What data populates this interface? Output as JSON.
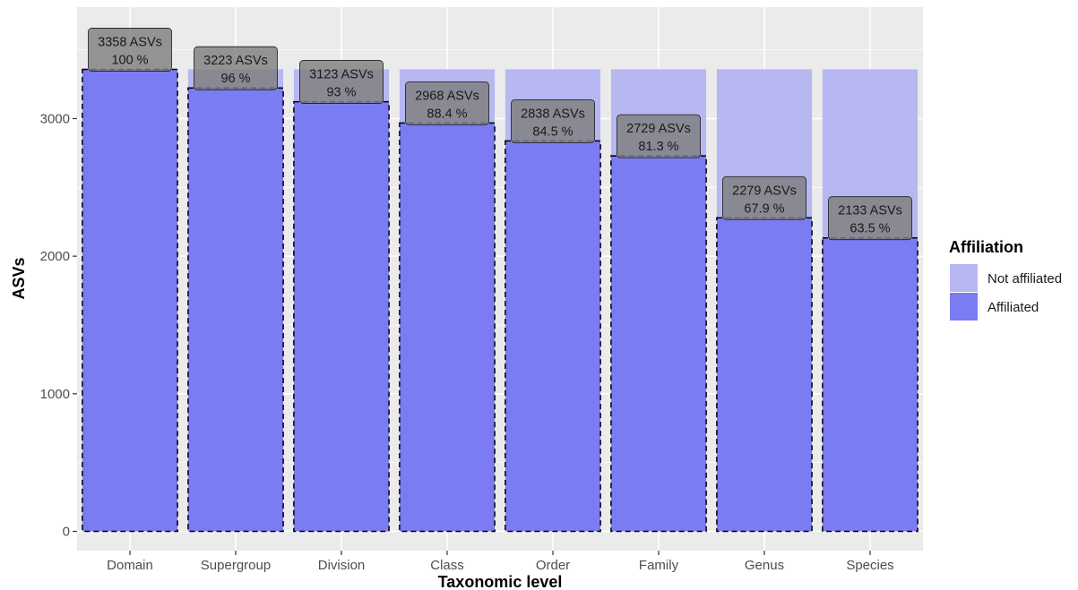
{
  "chart_data": {
    "type": "bar",
    "categories": [
      "Domain",
      "Supergroup",
      "Division",
      "Class",
      "Order",
      "Family",
      "Genus",
      "Species"
    ],
    "series": [
      {
        "name": "Not affiliated",
        "values": [
          0,
          135,
          235,
          390,
          520,
          629,
          1079,
          1225
        ]
      },
      {
        "name": "Affiliated",
        "values": [
          3358,
          3223,
          3123,
          2968,
          2838,
          2729,
          2279,
          2133
        ]
      }
    ],
    "total": 3358,
    "labels": [
      [
        "3358 ASVs",
        "100 %"
      ],
      [
        "3223 ASVs",
        "96 %"
      ],
      [
        "3123 ASVs",
        "93 %"
      ],
      [
        "2968 ASVs",
        "88.4 %"
      ],
      [
        "2838 ASVs",
        "84.5 %"
      ],
      [
        "2729 ASVs",
        "81.3 %"
      ],
      [
        "2279 ASVs",
        "67.9 %"
      ],
      [
        "2133 ASVs",
        "63.5 %"
      ]
    ],
    "xlabel": "Taxonomic level",
    "ylabel": "ASVs",
    "ylim": [
      -140,
      3810
    ],
    "yticks": [
      0,
      1000,
      2000,
      3000
    ],
    "ytick_labels": [
      "0",
      "1000",
      "2000",
      "3000"
    ],
    "grid": true,
    "legend": {
      "title": "Affiliation",
      "position": "right",
      "entries": [
        "Not affiliated",
        "Affiliated"
      ]
    },
    "colors": {
      "affiliated": "#7b7bf2",
      "not_affiliated": "#b7b7f1",
      "panel": "#ebebeb",
      "grid": "#ffffff",
      "label_fill": "#7f7f7f"
    }
  }
}
